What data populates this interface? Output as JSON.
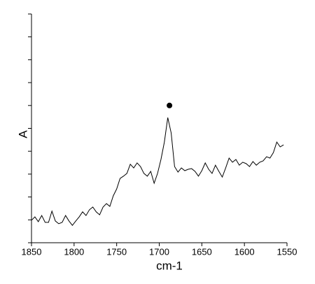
{
  "chart_data": {
    "type": "line",
    "x_label": "cm-1",
    "y_label": "A",
    "x": [
      1850,
      1846,
      1842,
      1838,
      1834,
      1830,
      1826,
      1822,
      1818,
      1814,
      1810,
      1806,
      1802,
      1798,
      1794,
      1790,
      1786,
      1782,
      1778,
      1774,
      1770,
      1766,
      1762,
      1758,
      1754,
      1750,
      1746,
      1742,
      1738,
      1734,
      1730,
      1726,
      1722,
      1718,
      1714,
      1710,
      1706,
      1702,
      1698,
      1694,
      1690,
      1686,
      1682,
      1678,
      1674,
      1670,
      1666,
      1662,
      1658,
      1654,
      1650,
      1646,
      1642,
      1638,
      1634,
      1630,
      1626,
      1622,
      1618,
      1614,
      1610,
      1606,
      1602,
      1598,
      1594,
      1590,
      1586,
      1582,
      1578,
      1574,
      1570,
      1566,
      1562,
      1558,
      1554
    ],
    "values": [
      0.98,
      1.13,
      0.92,
      1.19,
      0.89,
      0.89,
      1.38,
      0.95,
      0.83,
      0.89,
      1.19,
      0.95,
      0.76,
      0.95,
      1.13,
      1.35,
      1.19,
      1.44,
      1.56,
      1.35,
      1.22,
      1.56,
      1.71,
      1.59,
      2.05,
      2.35,
      2.81,
      2.91,
      3.03,
      3.43,
      3.27,
      3.49,
      3.33,
      3.03,
      2.91,
      3.12,
      2.6,
      3.03,
      3.64,
      4.4,
      5.47,
      4.8,
      3.33,
      3.09,
      3.27,
      3.15,
      3.21,
      3.24,
      3.12,
      2.91,
      3.15,
      3.49,
      3.21,
      3.03,
      3.39,
      3.12,
      2.87,
      3.27,
      3.7,
      3.52,
      3.64,
      3.39,
      3.52,
      3.46,
      3.33,
      3.55,
      3.39,
      3.52,
      3.58,
      3.76,
      3.7,
      3.94,
      4.4,
      4.19,
      4.28
    ],
    "color": "#000000",
    "markers": [
      {
        "x": 1688,
        "y": 6.0
      }
    ],
    "xlim": [
      1850,
      1550
    ],
    "xticks": [
      1850,
      1800,
      1750,
      1700,
      1650,
      1600,
      1550
    ],
    "ylim": [
      0,
      10
    ],
    "yticks": [
      0,
      1,
      2,
      3,
      4,
      5,
      6,
      7,
      8,
      9,
      10
    ]
  }
}
